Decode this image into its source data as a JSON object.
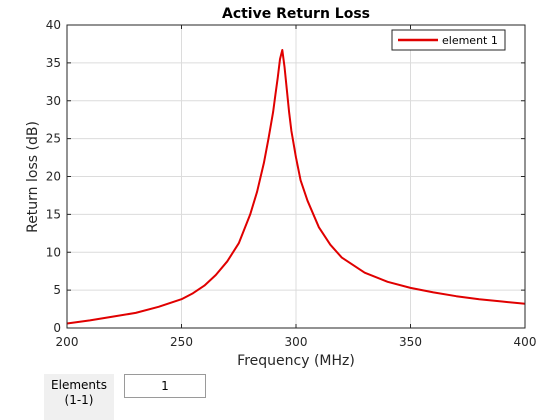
{
  "chart_data": {
    "type": "line",
    "title": "Active Return Loss",
    "xlabel": "Frequency (MHz)",
    "ylabel": "Return loss (dB)",
    "xlim": [
      200,
      400
    ],
    "ylim": [
      0,
      40
    ],
    "xticks": [
      200,
      250,
      300,
      350,
      400
    ],
    "yticks": [
      0,
      5,
      10,
      15,
      20,
      25,
      30,
      35,
      40
    ],
    "grid": true,
    "legend_position": "top-right",
    "series": [
      {
        "name": "element 1",
        "color": "#e00000",
        "x": [
          200,
          210,
          220,
          230,
          240,
          250,
          255,
          260,
          265,
          270,
          275,
          280,
          283,
          286,
          288,
          290,
          291,
          292,
          293,
          294,
          295,
          296,
          297,
          298,
          300,
          302,
          305,
          310,
          315,
          320,
          330,
          340,
          350,
          360,
          370,
          380,
          390,
          400
        ],
        "y": [
          0.6,
          1.0,
          1.5,
          2.0,
          2.8,
          3.8,
          4.6,
          5.6,
          7.0,
          8.8,
          11.2,
          15.0,
          18.0,
          21.8,
          25.0,
          28.5,
          30.8,
          33.0,
          35.5,
          36.7,
          34.5,
          31.5,
          28.5,
          26.0,
          22.5,
          19.5,
          16.8,
          13.3,
          11.0,
          9.3,
          7.3,
          6.1,
          5.3,
          4.7,
          4.2,
          3.8,
          3.5,
          3.2
        ]
      }
    ]
  },
  "controls": {
    "elements_label": "Elements",
    "elements_sublabel": "(1-1)",
    "elements_value": "1"
  }
}
